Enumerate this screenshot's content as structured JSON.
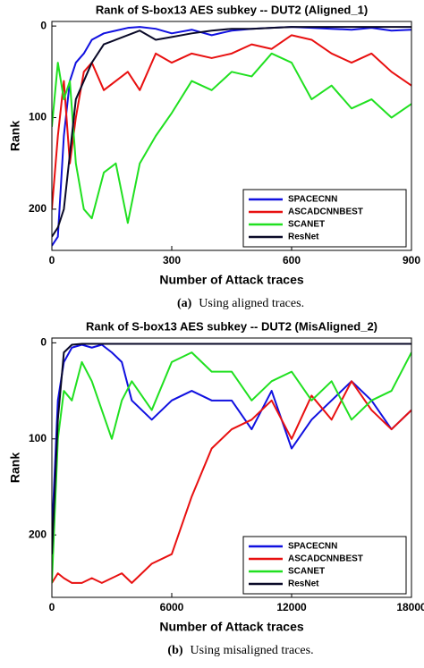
{
  "chart_data": [
    {
      "type": "line",
      "title": "Rank of S-box13 AES subkey -- DUT2 (Aligned_1)",
      "x_label": "Number of Attack traces",
      "y_label": "Rank",
      "caption_label": "(a)",
      "caption_text": "Using aligned traces.",
      "xlim": [
        0,
        900
      ],
      "ylim": [
        -5,
        245
      ],
      "y_inverted": true,
      "xticks": [
        0,
        300,
        600,
        900
      ],
      "yticks": [
        0,
        100,
        200
      ],
      "grid": false,
      "legend": "lower right",
      "x": [
        0,
        15,
        30,
        45,
        60,
        80,
        100,
        130,
        160,
        190,
        220,
        260,
        300,
        350,
        400,
        450,
        500,
        550,
        600,
        650,
        700,
        750,
        800,
        850,
        900
      ],
      "series": [
        {
          "name": "SPACECNN",
          "color": "#1010e0",
          "values": [
            240,
            230,
            120,
            60,
            40,
            30,
            15,
            8,
            5,
            2,
            1,
            3,
            8,
            4,
            10,
            5,
            3,
            2,
            1,
            2,
            3,
            4,
            2,
            5,
            4
          ]
        },
        {
          "name": "ASCADCNNBEST",
          "color": "#e81010",
          "values": [
            200,
            120,
            60,
            150,
            100,
            50,
            40,
            70,
            60,
            50,
            70,
            30,
            40,
            30,
            35,
            30,
            20,
            25,
            10,
            15,
            30,
            40,
            30,
            50,
            65
          ]
        },
        {
          "name": "SCANET",
          "color": "#20e020",
          "values": [
            110,
            40,
            80,
            60,
            150,
            200,
            210,
            160,
            150,
            215,
            150,
            120,
            95,
            60,
            70,
            50,
            55,
            30,
            40,
            80,
            65,
            90,
            80,
            100,
            85
          ]
        },
        {
          "name": "ResNet",
          "color": "#0a0a28",
          "values": [
            230,
            220,
            200,
            140,
            80,
            60,
            40,
            20,
            15,
            10,
            5,
            15,
            12,
            8,
            5,
            3,
            3,
            2,
            1,
            1,
            1,
            1,
            1,
            1,
            1
          ]
        }
      ]
    },
    {
      "type": "line",
      "title": "Rank of S-box13 AES subkey -- DUT2 (MisAligned_2)",
      "x_label": "Number of Attack traces",
      "y_label": "Rank",
      "caption_label": "(b)",
      "caption_text": "Using misaligned traces.",
      "xlim": [
        0,
        18000
      ],
      "ylim": [
        -5,
        265
      ],
      "y_inverted": true,
      "xticks": [
        0,
        6000,
        12000,
        18000
      ],
      "yticks": [
        0,
        100,
        200
      ],
      "grid": false,
      "legend": "lower right",
      "x": [
        0,
        300,
        600,
        1000,
        1500,
        2000,
        2500,
        3000,
        3500,
        4000,
        5000,
        6000,
        7000,
        8000,
        9000,
        10000,
        11000,
        12000,
        13000,
        14000,
        15000,
        16000,
        17000,
        18000
      ],
      "series": [
        {
          "name": "SPACECNN",
          "color": "#1010e0",
          "values": [
            200,
            60,
            20,
            5,
            2,
            5,
            2,
            10,
            20,
            60,
            80,
            60,
            50,
            60,
            60,
            90,
            50,
            110,
            80,
            60,
            40,
            60,
            90,
            70
          ]
        },
        {
          "name": "ASCADCNNBEST",
          "color": "#e81010",
          "values": [
            250,
            240,
            245,
            250,
            250,
            245,
            250,
            245,
            240,
            250,
            230,
            220,
            160,
            110,
            90,
            80,
            60,
            100,
            55,
            80,
            40,
            70,
            90,
            70
          ]
        },
        {
          "name": "SCANET",
          "color": "#20e020",
          "values": [
            250,
            100,
            50,
            60,
            20,
            40,
            70,
            100,
            60,
            40,
            70,
            20,
            10,
            30,
            30,
            60,
            40,
            30,
            60,
            40,
            80,
            60,
            50,
            10
          ]
        },
        {
          "name": "ResNet",
          "color": "#0a0a28",
          "values": [
            220,
            80,
            10,
            2,
            1,
            1,
            1,
            1,
            1,
            1,
            1,
            1,
            1,
            1,
            1,
            1,
            1,
            1,
            1,
            1,
            1,
            1,
            1,
            1
          ]
        }
      ]
    }
  ]
}
